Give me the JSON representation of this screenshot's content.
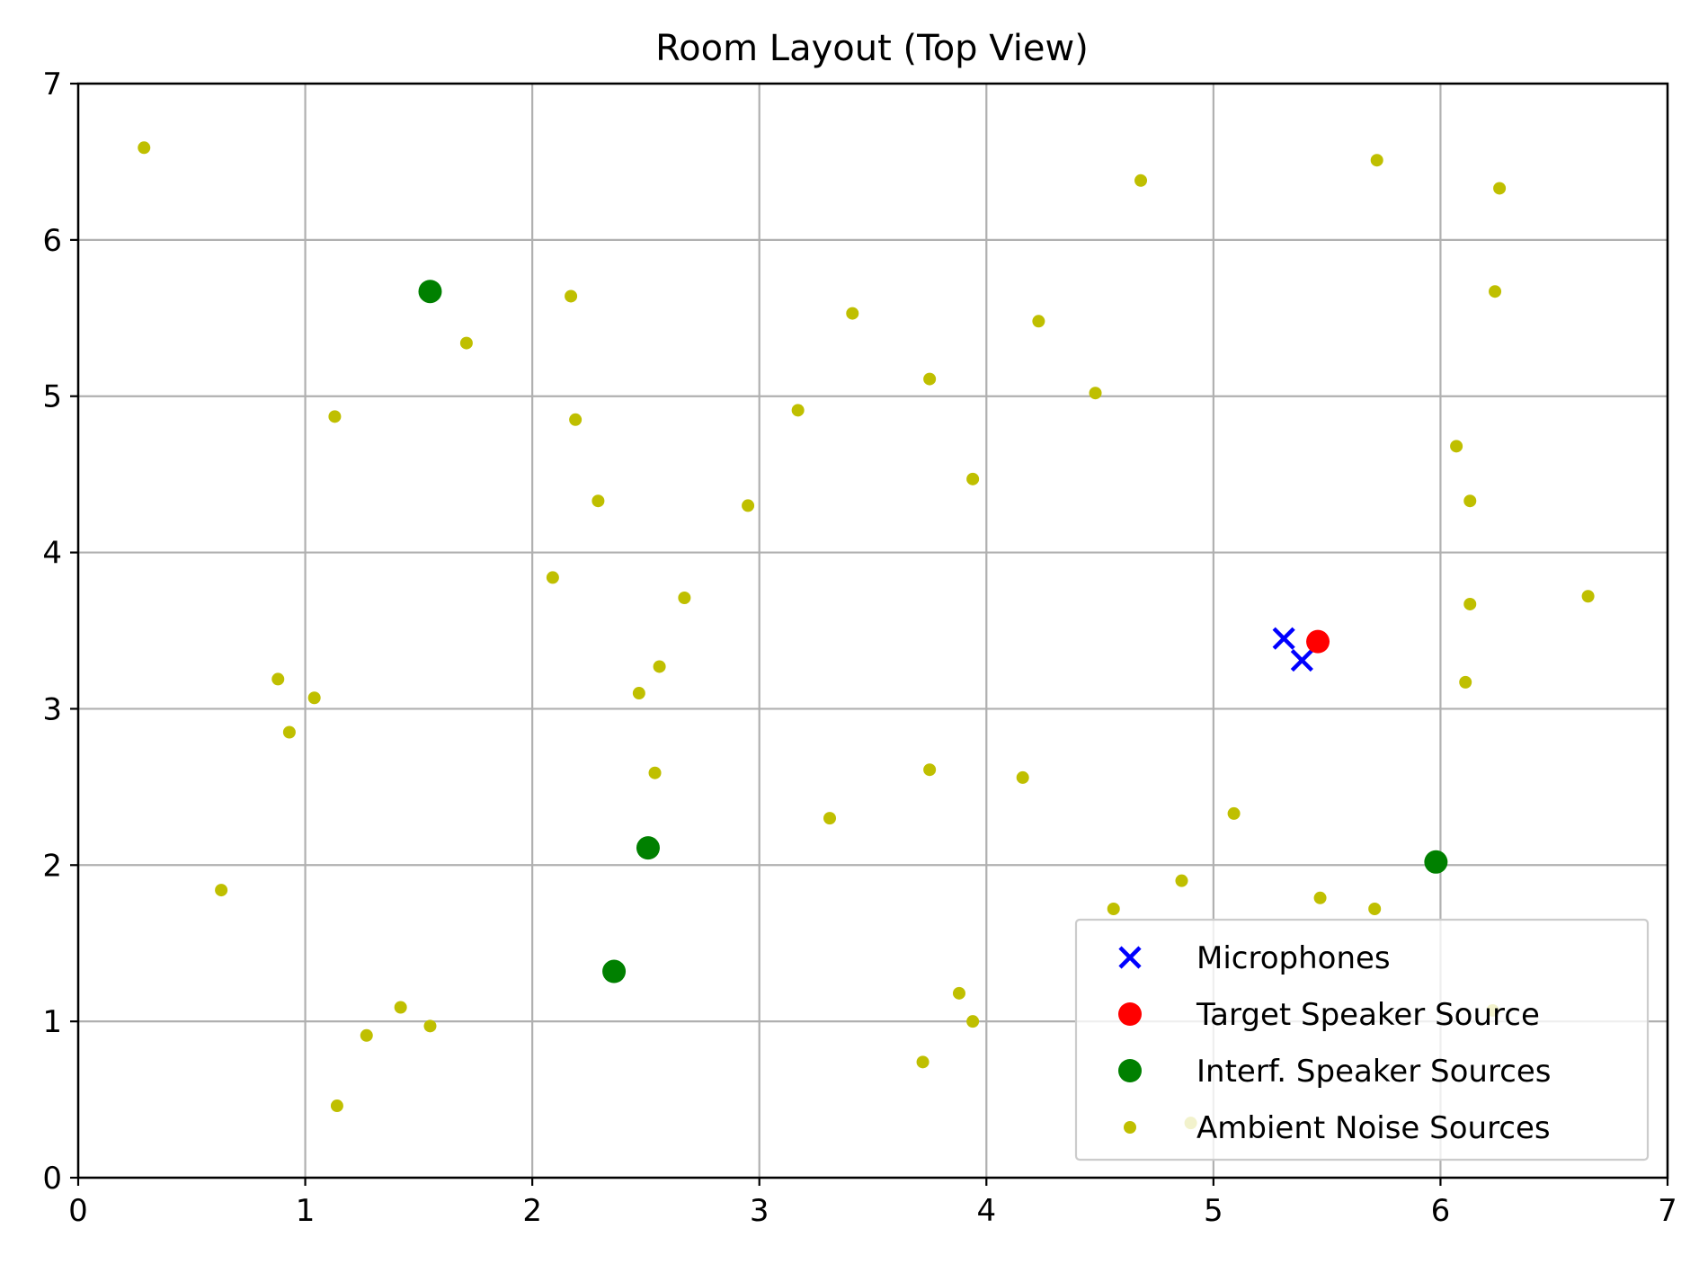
{
  "chart_data": {
    "type": "scatter",
    "title": "Room Layout (Top View)",
    "xlabel": "",
    "ylabel": "",
    "xlim": [
      0,
      7
    ],
    "ylim": [
      0,
      7
    ],
    "xticks": [
      0,
      1,
      2,
      3,
      4,
      5,
      6,
      7
    ],
    "yticks": [
      0,
      1,
      2,
      3,
      4,
      5,
      6,
      7
    ],
    "grid": true,
    "legend_position": "lower-right",
    "series": [
      {
        "name": "Microphones",
        "marker": "x",
        "color": "#0000ff",
        "points": [
          [
            5.31,
            3.45
          ],
          [
            5.39,
            3.31
          ]
        ]
      },
      {
        "name": "Target Speaker Source",
        "marker": "circle-large",
        "color": "#ff0000",
        "points": [
          [
            5.46,
            3.43
          ]
        ]
      },
      {
        "name": "Interf. Speaker Sources",
        "marker": "circle-large",
        "color": "#008000",
        "points": [
          [
            1.55,
            5.67
          ],
          [
            2.51,
            2.11
          ],
          [
            2.36,
            1.32
          ],
          [
            5.98,
            2.02
          ]
        ]
      },
      {
        "name": "Ambient Noise Sources",
        "marker": "circle-small",
        "color": "#bfbf00",
        "points": [
          [
            0.29,
            6.59
          ],
          [
            1.71,
            5.34
          ],
          [
            1.13,
            4.87
          ],
          [
            2.17,
            5.64
          ],
          [
            2.19,
            4.85
          ],
          [
            2.29,
            4.33
          ],
          [
            2.09,
            3.84
          ],
          [
            2.67,
            3.71
          ],
          [
            2.56,
            3.27
          ],
          [
            2.47,
            3.1
          ],
          [
            0.88,
            3.19
          ],
          [
            1.04,
            3.07
          ],
          [
            0.93,
            2.85
          ],
          [
            2.54,
            2.59
          ],
          [
            0.63,
            1.84
          ],
          [
            1.42,
            1.09
          ],
          [
            1.27,
            0.91
          ],
          [
            1.55,
            0.97
          ],
          [
            1.14,
            0.46
          ],
          [
            2.95,
            4.3
          ],
          [
            3.17,
            4.91
          ],
          [
            3.41,
            5.53
          ],
          [
            3.75,
            5.11
          ],
          [
            3.94,
            4.47
          ],
          [
            4.23,
            5.48
          ],
          [
            4.48,
            5.02
          ],
          [
            4.68,
            6.38
          ],
          [
            3.31,
            2.3
          ],
          [
            3.75,
            2.61
          ],
          [
            4.16,
            2.56
          ],
          [
            3.88,
            1.18
          ],
          [
            3.94,
            1.0
          ],
          [
            3.72,
            0.74
          ],
          [
            4.56,
            1.72
          ],
          [
            4.86,
            1.9
          ],
          [
            5.09,
            2.33
          ],
          [
            4.9,
            0.35
          ],
          [
            5.47,
            1.79
          ],
          [
            5.71,
            1.72
          ],
          [
            5.72,
            6.51
          ],
          [
            6.26,
            6.33
          ],
          [
            6.24,
            5.67
          ],
          [
            6.07,
            4.68
          ],
          [
            6.13,
            4.33
          ],
          [
            6.13,
            3.67
          ],
          [
            6.11,
            3.17
          ],
          [
            6.65,
            3.72
          ],
          [
            6.23,
            1.07
          ]
        ]
      }
    ]
  }
}
